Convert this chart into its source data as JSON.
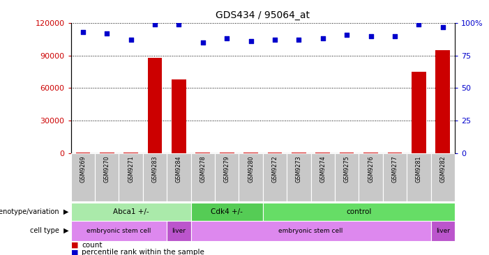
{
  "title": "GDS434 / 95064_at",
  "samples": [
    "GSM9269",
    "GSM9270",
    "GSM9271",
    "GSM9283",
    "GSM9284",
    "GSM9278",
    "GSM9279",
    "GSM9280",
    "GSM9272",
    "GSM9273",
    "GSM9274",
    "GSM9275",
    "GSM9276",
    "GSM9277",
    "GSM9281",
    "GSM9282"
  ],
  "counts": [
    300,
    300,
    300,
    88000,
    68000,
    300,
    300,
    300,
    300,
    300,
    300,
    300,
    300,
    300,
    75000,
    95000
  ],
  "percentile_ranks": [
    93,
    92,
    87,
    99,
    99,
    85,
    88,
    86,
    87,
    87,
    88,
    91,
    90,
    90,
    99,
    97
  ],
  "ylim_left": [
    0,
    120000
  ],
  "ylim_right": [
    0,
    100
  ],
  "yticks_left": [
    0,
    30000,
    60000,
    90000,
    120000
  ],
  "yticks_right": [
    0,
    25,
    50,
    75,
    100
  ],
  "genotype_groups": [
    {
      "label": "Abca1 +/-",
      "start": 0,
      "end": 5,
      "color": "#AAEAAA"
    },
    {
      "label": "Cdk4 +/-",
      "start": 5,
      "end": 8,
      "color": "#55CC55"
    },
    {
      "label": "control",
      "start": 8,
      "end": 16,
      "color": "#66DD66"
    }
  ],
  "celltype_groups": [
    {
      "label": "embryonic stem cell",
      "start": 0,
      "end": 4,
      "color": "#DD88EE"
    },
    {
      "label": "liver",
      "start": 4,
      "end": 5,
      "color": "#BB55CC"
    },
    {
      "label": "embryonic stem cell",
      "start": 5,
      "end": 15,
      "color": "#DD88EE"
    },
    {
      "label": "liver",
      "start": 15,
      "end": 16,
      "color": "#BB55CC"
    }
  ],
  "bar_color": "#CC0000",
  "dot_color": "#0000CC",
  "bg_color": "#FFFFFF",
  "grid_color": "#000000",
  "label_color_left": "#CC0000",
  "label_color_right": "#0000CC",
  "sample_bg_color": "#C8C8C8"
}
